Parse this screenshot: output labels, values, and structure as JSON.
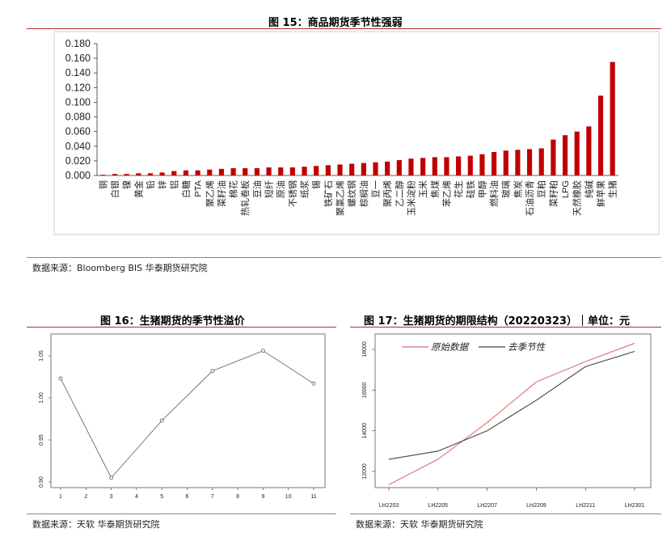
{
  "fig15": {
    "title": "图 15：商品期货季节性强弱",
    "source": "数据来源：Bloomberg BIS 华泰期货研究院"
  },
  "fig16": {
    "title": "图 16：生猪期货的季节性溢价",
    "source": "数据来源：天软 华泰期货研究院"
  },
  "fig17": {
    "title": "图 17：生猪期货的期限结构（20220323）｜单位：元",
    "source": "数据来源：天软 华泰期货研究院"
  },
  "colors": {
    "accent": "#b22a35",
    "bar": "#c00000",
    "line_raw": "#e07070",
    "line_adj": "#444444"
  },
  "chart_data": [
    {
      "type": "bar",
      "title": "图 15：商品期货季节性强弱",
      "ylim": [
        0,
        0.18
      ],
      "yticks": [
        "0.000",
        "0.020",
        "0.040",
        "0.060",
        "0.080",
        "0.100",
        "0.120",
        "0.140",
        "0.160",
        "0.180"
      ],
      "categories": [
        "铜",
        "白银",
        "镍",
        "黄金",
        "铅",
        "锌",
        "铝",
        "白糖",
        "PTA",
        "聚乙烯",
        "菜籽油",
        "棉花",
        "热轧卷板",
        "豆油",
        "短纤",
        "原油",
        "不锈钢",
        "纸浆",
        "锡",
        "铁矿石",
        "聚氯乙烯",
        "螺纹钢",
        "棕榈油",
        "豆一",
        "聚丙烯",
        "乙二醇",
        "玉米淀粉",
        "玉米",
        "焦煤",
        "苯乙烯",
        "花生",
        "硅铁",
        "甲醇",
        "燃料油",
        "玻璃",
        "焦炭",
        "石油沥青",
        "豆粕",
        "菜籽粕",
        "LPG",
        "天然橡胶",
        "纯碱",
        "鲜苹果",
        "生猪"
      ],
      "values": [
        0.001,
        0.002,
        0.002,
        0.003,
        0.003,
        0.004,
        0.006,
        0.007,
        0.007,
        0.008,
        0.009,
        0.01,
        0.01,
        0.01,
        0.011,
        0.011,
        0.011,
        0.012,
        0.013,
        0.014,
        0.015,
        0.016,
        0.017,
        0.018,
        0.019,
        0.021,
        0.023,
        0.024,
        0.025,
        0.025,
        0.026,
        0.027,
        0.029,
        0.032,
        0.034,
        0.035,
        0.036,
        0.037,
        0.049,
        0.055,
        0.06,
        0.067,
        0.109,
        0.155
      ]
    },
    {
      "type": "line",
      "title": "图 16：生猪期货的季节性溢价",
      "x": [
        1,
        3,
        5,
        7,
        9,
        11
      ],
      "xticks": [
        "1",
        "2",
        "3",
        "4",
        "5",
        "6",
        "7",
        "8",
        "9",
        "10",
        "11"
      ],
      "yticks": [
        "0.90",
        "0.95",
        "1.00",
        "1.05"
      ],
      "ylim": [
        0.9,
        1.06
      ],
      "series": [
        {
          "values": [
            1.023,
            0.905,
            0.973,
            1.032,
            1.056,
            1.017
          ]
        }
      ]
    },
    {
      "type": "line",
      "title": "图 17：生猪期货的期限结构（20220323）｜单位：元",
      "categories": [
        "LH2203",
        "LH2205",
        "LH2207",
        "LH2209",
        "LH2211",
        "LH2301"
      ],
      "yticks": [
        "12000",
        "14000",
        "16000",
        "18000"
      ],
      "ylim": [
        11200,
        18500
      ],
      "series": [
        {
          "name": "原始数据",
          "values": [
            11350,
            12600,
            14400,
            16400,
            17400,
            18300
          ]
        },
        {
          "name": "去季节性",
          "values": [
            12600,
            13000,
            14000,
            15500,
            17150,
            17900
          ]
        }
      ]
    }
  ]
}
